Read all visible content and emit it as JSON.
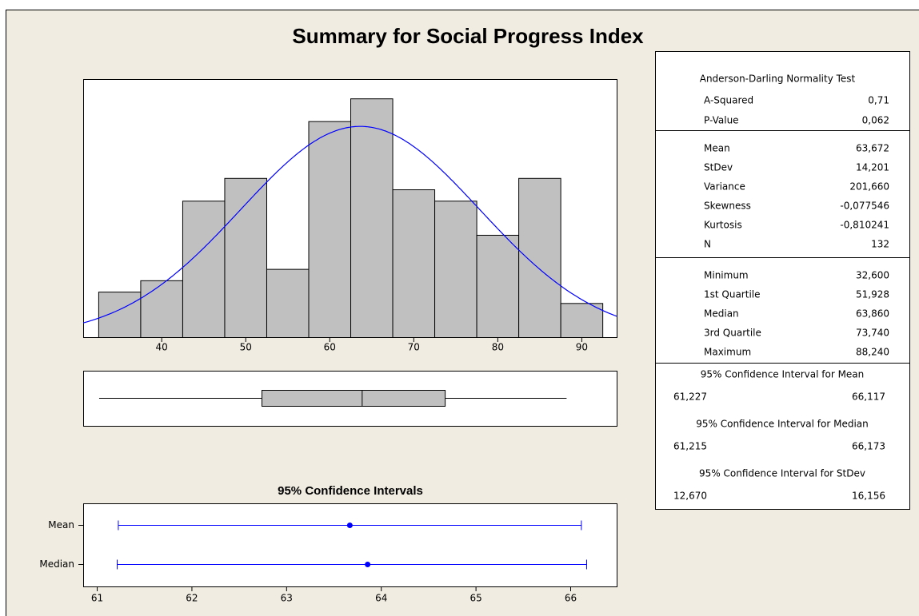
{
  "title": "Summary for Social Progress Index",
  "chart_data": [
    {
      "type": "histogram",
      "bins": [
        32.5,
        37.5,
        42.5,
        47.5,
        52.5,
        57.5,
        62.5,
        67.5,
        72.5,
        77.5,
        82.5,
        87.5,
        92.5
      ],
      "counts": [
        4,
        5,
        12,
        14,
        6,
        19,
        21,
        13,
        12,
        9,
        14,
        3
      ],
      "color": "#c0c0c0",
      "curve_color": "#0000ff",
      "xlim": [
        30.7,
        94.2
      ],
      "xticks": [
        40,
        50,
        60,
        70,
        80,
        90
      ],
      "ylim": [
        0,
        22.7
      ]
    },
    {
      "type": "interval",
      "title": "95% Confidence Intervals",
      "categories": [
        "Mean",
        "Median"
      ],
      "color": "#0000ff",
      "xlim": [
        60.856,
        66.49
      ],
      "xticks": [
        61,
        62,
        63,
        64,
        65,
        66
      ]
    }
  ],
  "stats": {
    "sections": [
      {
        "title": "Anderson-Darling Normality Test",
        "rows": [
          {
            "name": "A-Squared",
            "value": 0.71,
            "label": "0,71"
          },
          {
            "name": "P-Value",
            "value": 0.062,
            "label": "0,062"
          }
        ]
      },
      {
        "rows": [
          {
            "name": "Mean",
            "value": 63.672,
            "label": "63,672"
          },
          {
            "name": "StDev",
            "value": 14.201,
            "label": "14,201"
          },
          {
            "name": "Variance",
            "value": 201.66,
            "label": "201,660"
          },
          {
            "name": "Skewness",
            "value": -0.077546,
            "label": "-0,077546"
          },
          {
            "name": "Kurtosis",
            "value": -0.810241,
            "label": "-0,810241"
          },
          {
            "name": "N",
            "value": 132
          }
        ]
      },
      {
        "rows": [
          {
            "name": "Minimum",
            "value": 32.6,
            "label": "32,600"
          },
          {
            "name": "1st Quartile",
            "value": 51.928,
            "label": "51,928"
          },
          {
            "name": "Median",
            "value": 63.86,
            "label": "63,860"
          },
          {
            "name": "3rd Quartile",
            "value": 73.74,
            "label": "73,740"
          },
          {
            "name": "Maximum",
            "value": 88.24,
            "label": "88,240"
          }
        ]
      }
    ],
    "intervals": [
      {
        "title": "95% Confidence Interval for Mean",
        "lower": 61.227,
        "lower_label": "61,227",
        "upper": 66.117,
        "upper_label": "66,117"
      },
      {
        "title": "95% Confidence Interval for Median",
        "lower": 61.215,
        "lower_label": "61,215",
        "upper": 66.173,
        "upper_label": "66,173"
      },
      {
        "title": "95% Confidence Interval for StDev",
        "lower": 12.67,
        "lower_label": "12,670",
        "upper": 16.156,
        "upper_label": "16,156"
      }
    ]
  }
}
